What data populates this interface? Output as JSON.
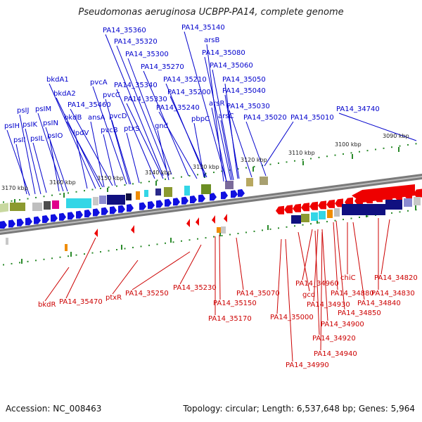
{
  "title": "Pseudomonas aeruginosa UCBPP-PA14, complete genome",
  "footer": {
    "accession": "Accession: NC_008463",
    "topology": "Topology: circular; Length: 6,537,648 bp; Genes: 5,964"
  },
  "colors": {
    "forward": "#1010e0",
    "reverse": "#ee0000",
    "label_fwd": "#0000cc",
    "label_rev": "#cc0000",
    "tick": "#2a8a2a"
  },
  "scale_labels": [
    "3170 kbp",
    "3160 kbp",
    "3150 kbp",
    "3140 kbp",
    "3130 kbp",
    "3120 kbp",
    "3110 kbp",
    "3100 kbp",
    "3090 kbp"
  ],
  "top_labels": [
    "PA14_35360",
    "PA14_35140",
    "arsB",
    "PA14_35320",
    "PA14_35080",
    "PA14_35300",
    "PA14_35060",
    "PA14_35270",
    "PA14_35210",
    "PA14_35050",
    "pvcA",
    "PA14_35340",
    "bkdA1",
    "PA14_35040",
    "pvcC",
    "PA14_35200",
    "bkdA2",
    "PA14_35330",
    "psIM",
    "psIJ",
    "PA14_35460",
    "PA14_35240",
    "arsR",
    "PA14_35030",
    "pvcD",
    "bkdB",
    "psIK",
    "psIN",
    "ansA",
    "gnd",
    "arsC",
    "PA14_35020",
    "PA14_35010",
    "PA14_34740",
    "psIH",
    "pbpC",
    "ptxS",
    "pvcB",
    "lpdV",
    "psIO",
    "psIL",
    "psII"
  ],
  "bottom_labels": [
    "PA14_34820",
    "chiC",
    "PA14_34960",
    "PA14_34830",
    "PA14_34880",
    "PA14_35470",
    "bkdR",
    "ptxR",
    "PA14_35250",
    "PA14_35230",
    "PA14_35070",
    "gcd",
    "PA14_34930",
    "PA14_34840",
    "PA14_35150",
    "PA14_34850",
    "PA14_35000",
    "PA14_35170",
    "PA14_34900",
    "PA14_34920",
    "PA14_34940",
    "PA14_34990"
  ]
}
